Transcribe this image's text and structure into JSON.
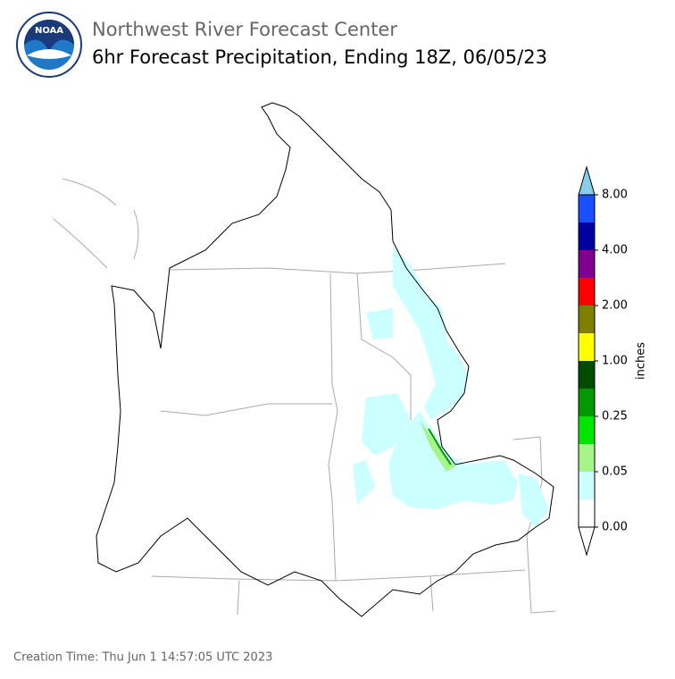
{
  "header": {
    "logo_text": "NOAA",
    "title": "Northwest River Forecast Center",
    "subtitle": "6hr Forecast Precipitation, Ending 18Z, 06/05/23"
  },
  "colorbar": {
    "label": "inches",
    "over_color": "#87ceeb",
    "under_color": "#ffffff",
    "colors": [
      "#ffffff",
      "#ccffff",
      "#a6f58a",
      "#00e600",
      "#009900",
      "#004d00",
      "#ffff00",
      "#808000",
      "#ff0000",
      "#800090",
      "#0000a0",
      "#1a4fff"
    ],
    "labels": [
      "0.00",
      "0.05",
      "0.25",
      "1.00",
      "2.00",
      "4.00",
      "8.00"
    ]
  },
  "footer": {
    "creation_time": "Creation Time: Thu Jun 1 14:57:05 UTC 2023"
  }
}
